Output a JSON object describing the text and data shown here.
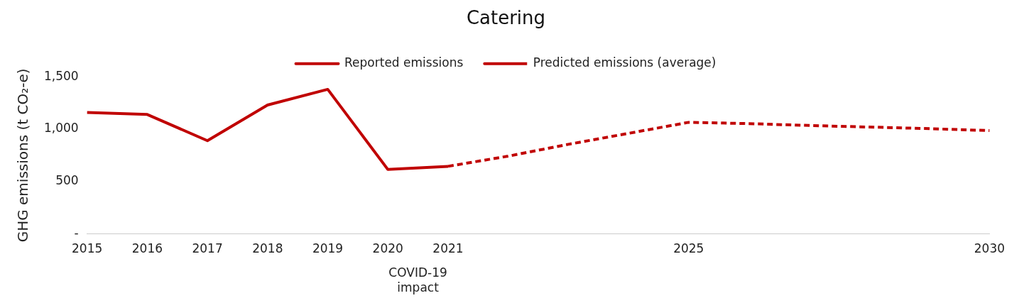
{
  "chart_data": {
    "type": "line",
    "title": "Catering",
    "ylabel": "GHG emissions (t CO₂-e)",
    "categories": [
      "2015",
      "2016",
      "2017",
      "2018",
      "2019",
      "2020",
      "2021",
      null,
      null,
      null,
      "2025",
      null,
      null,
      null,
      null,
      "2030"
    ],
    "series": [
      {
        "name": "Reported emissions",
        "color": "#c00000",
        "line_style": "solid",
        "values": [
          1160,
          1140,
          890,
          1230,
          1380,
          615,
          645,
          null,
          null,
          null,
          null,
          null,
          null,
          null,
          null,
          null
        ]
      },
      {
        "name": "Predicted emissions (average)",
        "color": "#c00000",
        "line_style": "dashed",
        "values": [
          null,
          null,
          null,
          null,
          null,
          null,
          645,
          742,
          855,
          960,
          1065,
          1053,
          1035,
          1020,
          1005,
          986
        ]
      }
    ],
    "ylim": [
      0,
      1500
    ],
    "yticks": [
      {
        "value": 0,
        "label": "-"
      },
      500,
      {
        "value": 1000,
        "label": "1,000"
      },
      {
        "value": 1500,
        "label": "1,500"
      }
    ],
    "grid": false,
    "legend": "top",
    "marker": "none",
    "annotations": [
      "COVID-19 impact"
    ]
  }
}
